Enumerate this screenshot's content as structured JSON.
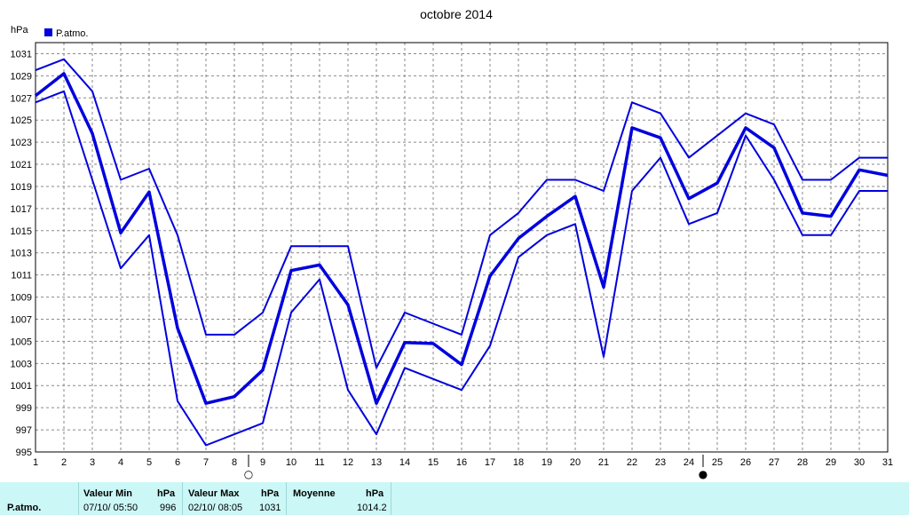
{
  "chart_data": {
    "type": "line",
    "title": "octobre 2014",
    "ylabel": "hPa",
    "legend": {
      "label": "P.atmo.",
      "placement": "top-left"
    },
    "ylim": [
      995,
      1032
    ],
    "y_ticks": [
      995,
      997,
      999,
      1001,
      1003,
      1005,
      1007,
      1009,
      1011,
      1013,
      1015,
      1017,
      1019,
      1021,
      1023,
      1025,
      1027,
      1029,
      1031
    ],
    "x": [
      1,
      2,
      3,
      4,
      5,
      6,
      7,
      8,
      9,
      10,
      11,
      12,
      13,
      14,
      15,
      16,
      17,
      18,
      19,
      20,
      21,
      22,
      23,
      24,
      25,
      26,
      27,
      28,
      29,
      30,
      31
    ],
    "grid": true,
    "color": "#0000dd",
    "series": [
      {
        "role": "max",
        "values": [
          1029.5,
          1030.5,
          1027.6,
          1019.6,
          1020.6,
          1014.6,
          1005.6,
          1005.6,
          1007.6,
          1013.6,
          1013.6,
          1013.6,
          1002.6,
          1007.6,
          1006.6,
          1005.6,
          1014.6,
          1016.6,
          1019.6,
          1019.6,
          1018.6,
          1026.6,
          1025.6,
          1021.6,
          1023.6,
          1025.6,
          1024.6,
          1019.6,
          1019.6,
          1021.6,
          1021.6
        ]
      },
      {
        "role": "mean",
        "values": [
          1027.2,
          1029.2,
          1023.8,
          1014.8,
          1018.5,
          1006.2,
          999.4,
          1000.0,
          1002.4,
          1011.4,
          1011.9,
          1008.3,
          999.4,
          1004.9,
          1004.8,
          1002.9,
          1010.9,
          1014.3,
          1016.3,
          1018.1,
          1009.9,
          1024.3,
          1023.4,
          1017.9,
          1019.3,
          1024.3,
          1022.5,
          1016.6,
          1016.3,
          1020.5,
          1020.0
        ]
      },
      {
        "role": "min",
        "values": [
          1026.6,
          1027.6,
          1019.6,
          1011.6,
          1014.6,
          999.6,
          995.6,
          996.6,
          997.6,
          1007.6,
          1010.6,
          1000.6,
          996.6,
          1002.6,
          1001.6,
          1000.6,
          1004.6,
          1012.6,
          1014.6,
          1015.6,
          1003.6,
          1018.6,
          1021.6,
          1015.6,
          1016.6,
          1023.6,
          1019.6,
          1014.6,
          1014.6,
          1018.6,
          1018.6
        ]
      }
    ],
    "moon_markers": [
      {
        "day": 8,
        "symbol": "○"
      },
      {
        "day": 24,
        "symbol": "●"
      }
    ]
  },
  "summary": {
    "row_label": "P.atmo.",
    "min_header": "Valeur Min",
    "max_header": "Valeur Max",
    "mean_header": "Moyenne",
    "unit": "hPa",
    "min_when": "07/10/  05:50",
    "min_value": "996",
    "max_when": "02/10/  08:05",
    "max_value": "1031",
    "mean_value": "1014.2"
  }
}
